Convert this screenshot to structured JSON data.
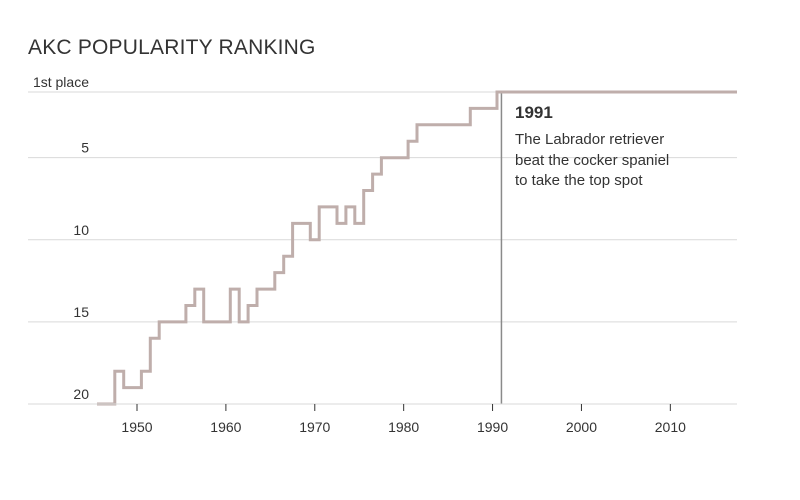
{
  "chart_data": {
    "type": "line",
    "title": "AKC POPULARITY RANKING",
    "xlabel": "",
    "ylabel": "",
    "xlim": [
      1945.5,
      2017.5
    ],
    "ylim": [
      20.5,
      0.5
    ],
    "x_ticks": [
      1950,
      1960,
      1970,
      1980,
      1990,
      2000,
      2010
    ],
    "y_ticks": [
      {
        "value": 1,
        "label": "1st place"
      },
      {
        "value": 5,
        "label": "5"
      },
      {
        "value": 10,
        "label": "10"
      },
      {
        "value": 15,
        "label": "15"
      },
      {
        "value": 20,
        "label": "20"
      }
    ],
    "grid": true,
    "series": [
      {
        "color": "#bfaeab",
        "step": true,
        "x": [
          1946,
          1947,
          1948,
          1949,
          1950,
          1951,
          1952,
          1953,
          1954,
          1955,
          1956,
          1957,
          1958,
          1959,
          1960,
          1961,
          1962,
          1963,
          1964,
          1965,
          1966,
          1967,
          1968,
          1969,
          1970,
          1971,
          1972,
          1973,
          1974,
          1975,
          1976,
          1977,
          1978,
          1979,
          1980,
          1981,
          1982,
          1983,
          1984,
          1985,
          1986,
          1987,
          1988,
          1989,
          1990,
          1991,
          1992,
          1993,
          1994,
          1995,
          1996,
          1997,
          1998,
          1999,
          2000,
          2001,
          2002,
          2003,
          2004,
          2005,
          2006,
          2007,
          2008,
          2009,
          2010,
          2011,
          2012,
          2013,
          2014,
          2015,
          2016,
          2017
        ],
        "y": [
          20,
          20,
          18,
          19,
          19,
          18,
          16,
          15,
          15,
          15,
          14,
          13,
          15,
          15,
          15,
          13,
          15,
          14,
          13,
          13,
          12,
          11,
          9,
          9,
          10,
          8,
          8,
          9,
          8,
          9,
          7,
          6,
          5,
          5,
          5,
          4,
          3,
          3,
          3,
          3,
          3,
          3,
          2,
          2,
          2,
          1,
          1,
          1,
          1,
          1,
          1,
          1,
          1,
          1,
          1,
          1,
          1,
          1,
          1,
          1,
          1,
          1,
          1,
          1,
          1,
          1,
          1,
          1,
          1,
          1,
          1,
          1
        ]
      }
    ],
    "annotations": [
      {
        "x": 1991,
        "year": "1991",
        "text": "The Labrador retriever beat the cocker spaniel to take the top spot"
      }
    ],
    "colors": {
      "line": "#bfaeab",
      "grid": "#d9d9d9",
      "annotation_line": "#8a8a8a",
      "axis": "#333333"
    }
  }
}
